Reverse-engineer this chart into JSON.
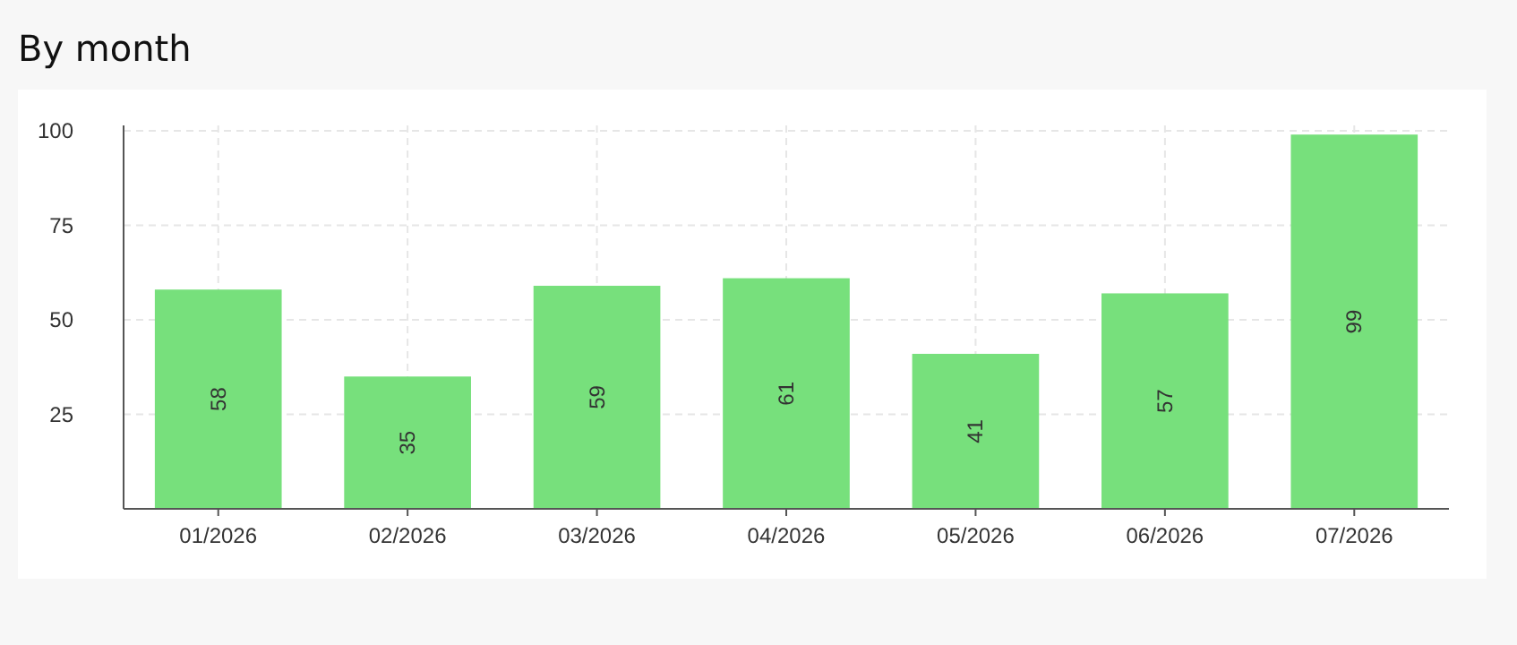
{
  "chart_data": {
    "type": "bar",
    "title": "By month",
    "categories": [
      "01/2026",
      "02/2026",
      "03/2026",
      "04/2026",
      "05/2026",
      "06/2026",
      "07/2026"
    ],
    "values": [
      58,
      35,
      59,
      61,
      41,
      57,
      99
    ],
    "color": "#77e07c",
    "ylim": [
      0,
      100
    ],
    "yticks": [
      25,
      50,
      75,
      100
    ],
    "grid": true,
    "data_labels": true
  }
}
